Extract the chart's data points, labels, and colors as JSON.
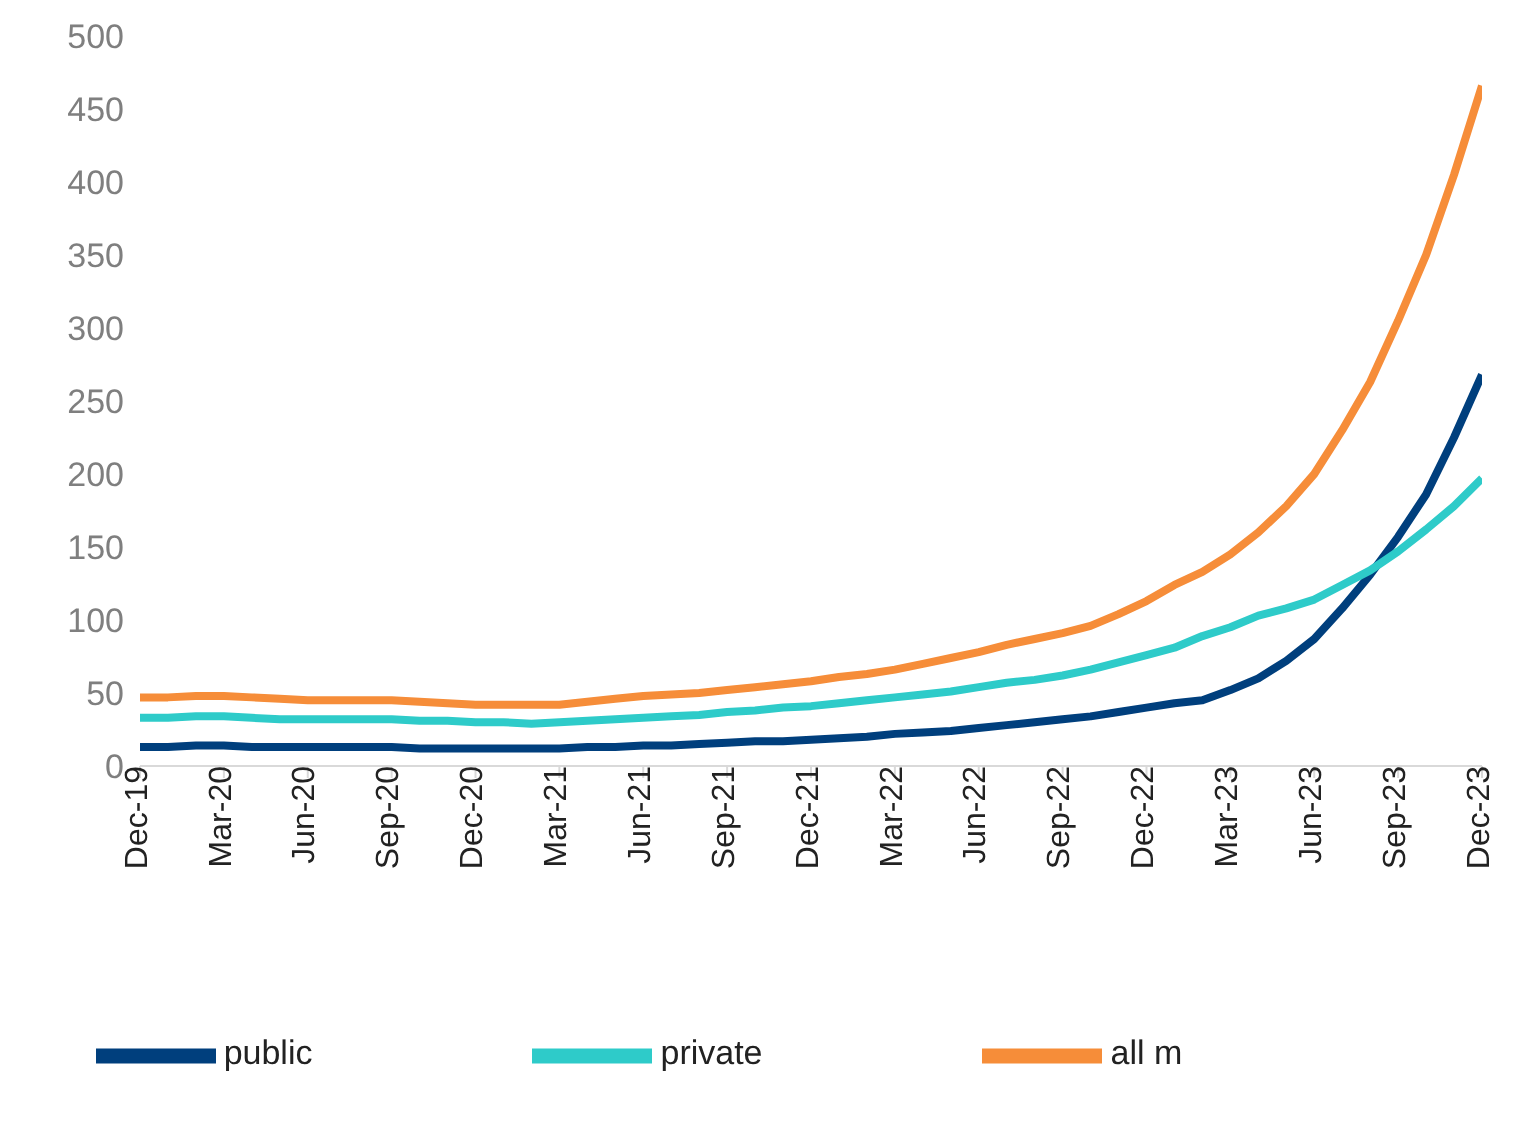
{
  "chart_data": {
    "type": "line",
    "categories": [
      "Dec-19",
      null,
      null,
      "Mar-20",
      null,
      null,
      "Jun-20",
      null,
      null,
      "Sep-20",
      null,
      null,
      "Dec-20",
      null,
      null,
      "Mar-21",
      null,
      null,
      "Jun-21",
      null,
      null,
      "Sep-21",
      null,
      null,
      "Dec-21",
      null,
      null,
      "Mar-22",
      null,
      null,
      "Jun-22",
      null,
      null,
      "Sep-22",
      null,
      null,
      "Dec-22",
      null,
      null,
      "Mar-23",
      null,
      null,
      "Jun-23",
      null,
      null,
      "Sep-23",
      null,
      null,
      "Dec-23"
    ],
    "series": [
      {
        "name": "public",
        "color": "#003f7d",
        "values": [
          13,
          13,
          14,
          14,
          13,
          13,
          13,
          13,
          13,
          13,
          12,
          12,
          12,
          12,
          12,
          12,
          13,
          13,
          14,
          14,
          15,
          16,
          17,
          17,
          18,
          19,
          20,
          22,
          23,
          24,
          26,
          28,
          30,
          32,
          34,
          37,
          40,
          43,
          45,
          52,
          60,
          72,
          87,
          108,
          131,
          157,
          186,
          225,
          268
        ]
      },
      {
        "name": "private",
        "color": "#2ecbc9",
        "values": [
          33,
          33,
          34,
          34,
          33,
          32,
          32,
          32,
          32,
          32,
          31,
          31,
          30,
          30,
          29,
          30,
          31,
          32,
          33,
          34,
          35,
          37,
          38,
          40,
          41,
          43,
          45,
          47,
          49,
          51,
          54,
          57,
          59,
          62,
          66,
          71,
          76,
          81,
          89,
          95,
          103,
          108,
          114,
          124,
          134,
          147,
          162,
          178,
          197
        ]
      },
      {
        "name": "all m",
        "color": "#f68d39",
        "values": [
          47,
          47,
          48,
          48,
          47,
          46,
          45,
          45,
          45,
          45,
          44,
          43,
          42,
          42,
          42,
          42,
          44,
          46,
          48,
          49,
          50,
          52,
          54,
          56,
          58,
          61,
          63,
          66,
          70,
          74,
          78,
          83,
          87,
          91,
          96,
          104,
          113,
          124,
          133,
          145,
          160,
          178,
          200,
          230,
          263,
          305,
          350,
          405,
          466
        ]
      }
    ],
    "ylim": [
      0,
      500
    ],
    "yticks": [
      0,
      50,
      100,
      150,
      200,
      250,
      300,
      350,
      400,
      450,
      500
    ],
    "grid": false,
    "legend": "bottom",
    "marker": "none",
    "line_style": "solid"
  }
}
